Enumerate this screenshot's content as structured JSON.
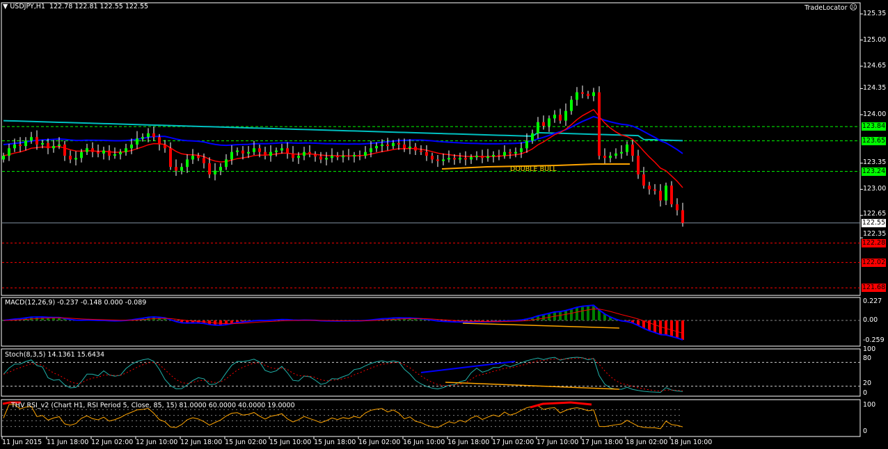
{
  "header": {
    "symbol": "USDJPY,H1",
    "ohlc": "122.78 122.81 122.55 122.55",
    "broker": "TradeLocator"
  },
  "colors": {
    "bull": "#00ff00",
    "bear": "#ff0000",
    "ma_fast": "#ff0000",
    "ma_mid": "#0000ff",
    "ma_slow": "#00c0c0",
    "support": "#ffa500",
    "grid_green": "#00ff00",
    "grid_red": "#ff0000"
  },
  "chart_data": [
    {
      "type": "candlestick",
      "title": "USDJPY,H1",
      "ylim": [
        121.6,
        125.45
      ],
      "y_ticks": [
        "125.35",
        "125.00",
        "124.65",
        "124.35",
        "124.00",
        "123.35",
        "123.00",
        "122.65",
        "122.35"
      ],
      "x_ticks": [
        "11 Jun 2015",
        "11 Jun 18:00",
        "12 Jun 02:00",
        "12 Jun 10:00",
        "12 Jun 18:00",
        "15 Jun 02:00",
        "15 Jun 10:00",
        "15 Jun 18:00",
        "16 Jun 02:00",
        "16 Jun 10:00",
        "16 Jun 18:00",
        "17 Jun 02:00",
        "17 Jun 10:00",
        "17 Jun 18:00",
        "18 Jun 02:00",
        "18 Jun 10:00"
      ],
      "closes": [
        123.45,
        123.55,
        123.6,
        123.58,
        123.65,
        123.7,
        123.6,
        123.62,
        123.55,
        123.58,
        123.6,
        123.45,
        123.4,
        123.42,
        123.5,
        123.55,
        123.5,
        123.48,
        123.52,
        123.45,
        123.47,
        123.5,
        123.55,
        123.6,
        123.68,
        123.7,
        123.75,
        123.7,
        123.6,
        123.55,
        123.3,
        123.25,
        123.3,
        123.4,
        123.45,
        123.42,
        123.35,
        123.2,
        123.25,
        123.3,
        123.4,
        123.5,
        123.52,
        123.48,
        123.5,
        123.55,
        123.5,
        123.45,
        123.5,
        123.52,
        123.55,
        123.48,
        123.42,
        123.45,
        123.5,
        123.47,
        123.44,
        123.4,
        123.42,
        123.45,
        123.43,
        123.45,
        123.44,
        123.46,
        123.45,
        123.5,
        123.55,
        123.58,
        123.6,
        123.58,
        123.62,
        123.6,
        123.55,
        123.57,
        123.52,
        123.5,
        123.45,
        123.4,
        123.38,
        123.4,
        123.42,
        123.4,
        123.42,
        123.4,
        123.43,
        123.45,
        123.42,
        123.44,
        123.46,
        123.45,
        123.5,
        123.48,
        123.5,
        123.55,
        123.65,
        123.75,
        123.9,
        123.85,
        123.95,
        124.0,
        123.92,
        124.05,
        124.2,
        124.3,
        124.28,
        124.25,
        124.3,
        123.45,
        123.42,
        123.45,
        123.48,
        123.5,
        123.6,
        123.45,
        123.2,
        123.05,
        123.0,
        122.98,
        122.85,
        123.05,
        122.8,
        122.72,
        122.55
      ],
      "levels_green": [
        {
          "value": 123.84,
          "label": "123.84"
        },
        {
          "value": 123.65,
          "label": "123.65"
        },
        {
          "value": 123.24,
          "label": "123.24"
        }
      ],
      "levels_red": [
        {
          "value": 122.28,
          "label": "122.28"
        },
        {
          "value": 122.02,
          "label": "122.02"
        },
        {
          "value": 121.68,
          "label": "121.68"
        }
      ],
      "current_price": {
        "value": 122.55,
        "label": "122.55"
      },
      "annotation": "DOUBLE BULL"
    },
    {
      "type": "bar+line",
      "title": "MACD(12,26,9) -0.237 -0.148 0.000 -0.089",
      "y_ticks": [
        "0.227",
        "0.00",
        "-0.259"
      ],
      "ylim": [
        -0.259,
        0.227
      ]
    },
    {
      "type": "line",
      "title": "Stoch(8,3,5) 14.1361 15.6434",
      "y_ticks": [
        "100",
        "80",
        "20",
        "0"
      ],
      "ylim": [
        0,
        100
      ],
      "levels": [
        80,
        20
      ]
    },
    {
      "type": "line",
      "title": "THV RSI_v2   (Chart H1,  RSI Period 5,  Close,  85,  15)  81.0000 60.0000 40.0000 19.0000",
      "y_ticks": [
        "100",
        "0"
      ],
      "ylim": [
        0,
        100
      ]
    }
  ]
}
